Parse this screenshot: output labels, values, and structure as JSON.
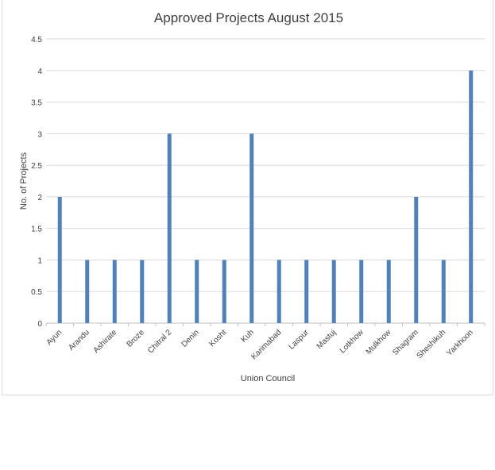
{
  "chart_data": {
    "type": "bar",
    "title": "Approved Projects August 2015",
    "xlabel": "Union Council",
    "ylabel": "No. of Projects",
    "ylim": [
      0,
      4.5
    ],
    "yticks": [
      "0",
      "0.5",
      "1",
      "1.5",
      "2",
      "2.5",
      "3",
      "3.5",
      "4",
      "4.5"
    ],
    "grid": true,
    "legend": "none",
    "categories": [
      "Ayun",
      "Arandu",
      "Ashirate",
      "Broze",
      "Chitral 2",
      "Denin",
      "Kosht",
      "Kuh",
      "Karimabad",
      "Laspur",
      "Mastuj",
      "Lotkhow",
      "Mulkhow",
      "Shagram",
      "Sheshikuh",
      "Yarkhoon"
    ],
    "values": [
      2,
      1,
      1,
      1,
      3,
      1,
      1,
      3,
      1,
      1,
      1,
      1,
      1,
      2,
      1,
      4
    ],
    "bar_color": "#4f81bd",
    "grid_color": "#d9d9d9",
    "axis_color": "#bfbfbf"
  }
}
